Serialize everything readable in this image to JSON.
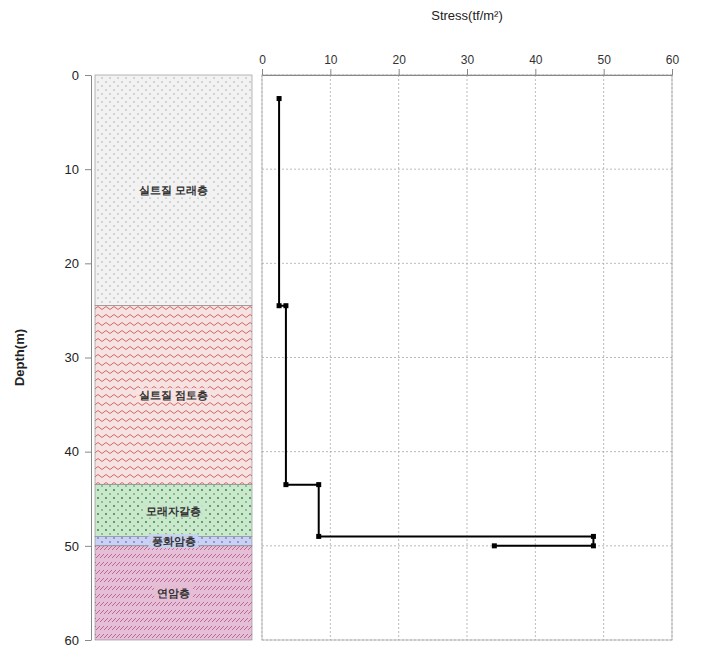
{
  "chart_data": {
    "type": "line",
    "x_label": "Stress(tf/m²)",
    "y_label": "Depth(m)",
    "xlim": [
      0,
      60
    ],
    "xticks": [
      0,
      10,
      20,
      30,
      40,
      50,
      60
    ],
    "ylim": [
      0,
      60
    ],
    "yticks": [
      0,
      10,
      20,
      30,
      40,
      50,
      60
    ],
    "grid": true,
    "series": [
      {
        "color": "#000000",
        "marker": "square",
        "line_style": "solid",
        "x": [
          2.5,
          2.5,
          3.5,
          3.5,
          8.3,
          8.3,
          48.5,
          48.5,
          34
        ],
        "values": [
          2.5,
          24.5,
          24.5,
          43.5,
          43.5,
          49,
          49,
          50,
          50
        ]
      }
    ],
    "layers": [
      {
        "label": "실트질 모래층",
        "top": 0,
        "bottom": 24.5,
        "color": "#f2f2f2"
      },
      {
        "label": "실트질 점토층",
        "top": 24.5,
        "bottom": 43.5,
        "color": "#f7e2e2"
      },
      {
        "label": "모래자갈층",
        "top": 43.5,
        "bottom": 49,
        "color": "#c9e8cc"
      },
      {
        "label": "풍화암층",
        "top": 49,
        "bottom": 50,
        "color": "#c9d2f2"
      },
      {
        "label": "연암층",
        "top": 50,
        "bottom": 60,
        "color": "#e6bfd6"
      }
    ]
  }
}
